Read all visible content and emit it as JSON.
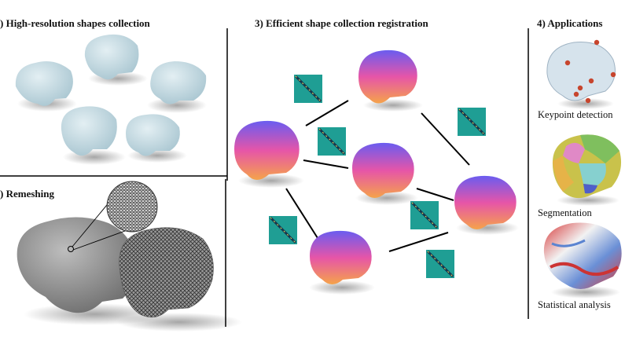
{
  "panels": {
    "p1_title": ") High-resolution shapes collection",
    "p2_title": ") Remeshing",
    "p3_title": "3) Efficient shape collection registration",
    "p4_title": "4) Applications"
  },
  "applications": {
    "keypoint": "Keypoint detection",
    "segmentation": "Segmentation",
    "statistical": "Statistical analysis"
  },
  "colors": {
    "brain_blue": "#c9dde4",
    "gradient_top": "#6a5cf0",
    "gradient_mid": "#e655a8",
    "gradient_bottom": "#f5a34a",
    "matrix_bg": "#1f9e94",
    "keypoint_dot": "#c7452d"
  }
}
